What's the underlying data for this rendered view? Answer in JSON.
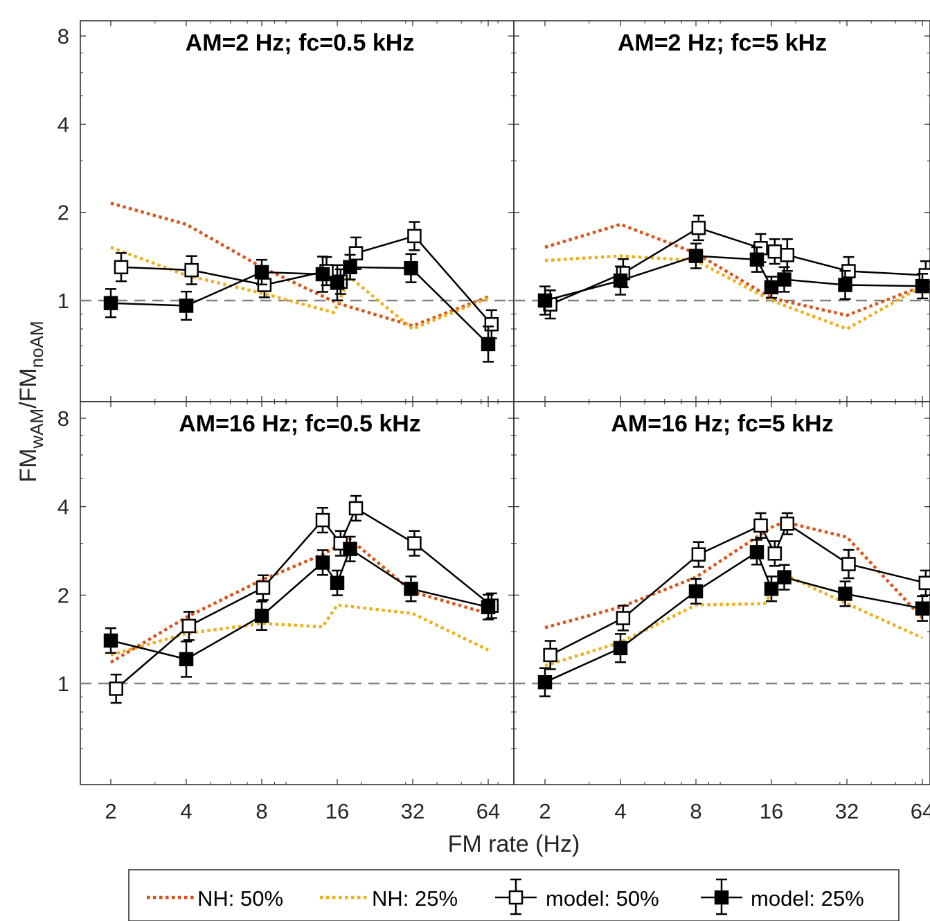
{
  "colors": {
    "nh50": "#D95319",
    "nh25": "#EDB120",
    "model": "#000000",
    "reference_line": "#808080"
  },
  "chart_data": {
    "type": "line",
    "x_scale": "log2",
    "y_scale": "log2",
    "xlabel": "FM rate (Hz)",
    "ylabel": "FMwAM/FMnoAM",
    "ylabel_parts": {
      "main": "FM",
      "sub1": "wAM",
      "slash": "/FM",
      "sub2": "noAM"
    },
    "xlim": [
      1.6,
      80
    ],
    "ylim": [
      0.5,
      9
    ],
    "xticks": [
      2,
      4,
      8,
      16,
      32,
      64
    ],
    "yticks": [
      1,
      2,
      4,
      8
    ],
    "reference_y": 1,
    "legend": {
      "placement": "bottom",
      "entries": [
        {
          "label": "NH: 50%",
          "style": "dotted",
          "color_key": "nh50"
        },
        {
          "label": "NH: 25%",
          "style": "dotted",
          "color_key": "nh25"
        },
        {
          "label": "model: 50%",
          "style": "open-square-errorbar"
        },
        {
          "label": "model: 25%",
          "style": "filled-square-errorbar"
        }
      ]
    },
    "panels": [
      {
        "title": "AM=2 Hz; fc=0.5 kHz",
        "series": [
          {
            "name": "NH: 50%",
            "x": [
              2,
              4,
              8,
              16,
              32,
              64
            ],
            "y": [
              2.15,
              1.82,
              1.3,
              0.98,
              0.82,
              1.03
            ]
          },
          {
            "name": "NH: 25%",
            "x": [
              2,
              4,
              8,
              15.5,
              18,
              32,
              64
            ],
            "y": [
              1.52,
              1.22,
              1.06,
              0.91,
              1.2,
              0.8,
              1.02
            ]
          },
          {
            "name": "model: 50%",
            "x": [
              2.2,
              4.2,
              8.2,
              14.5,
              16.5,
              19,
              32.5,
              66
            ],
            "y": [
              1.3,
              1.27,
              1.13,
              1.26,
              1.16,
              1.45,
              1.66,
              0.83
            ],
            "err": [
              0.08,
              0.08,
              0.07,
              0.08,
              0.07,
              0.09,
              0.08,
              0.08
            ]
          },
          {
            "name": "model: 25%",
            "x": [
              2,
              4,
              8,
              14,
              16,
              18,
              31.5,
              64
            ],
            "y": [
              0.98,
              0.96,
              1.25,
              1.23,
              1.15,
              1.3,
              1.29,
              0.71
            ],
            "err": [
              0.08,
              0.08,
              0.07,
              0.1,
              0.1,
              0.07,
              0.08,
              0.1
            ]
          }
        ]
      },
      {
        "title": "AM=2 Hz; fc=5 kHz",
        "series": [
          {
            "name": "NH: 50%",
            "x": [
              2,
              4,
              8,
              16,
              32,
              64
            ],
            "y": [
              1.52,
              1.82,
              1.45,
              1.02,
              0.89,
              1.12
            ]
          },
          {
            "name": "NH: 25%",
            "x": [
              2,
              4,
              8,
              16,
              32,
              64
            ],
            "y": [
              1.37,
              1.42,
              1.37,
              1.0,
              0.8,
              1.12
            ]
          },
          {
            "name": "model: 50%",
            "x": [
              2.1,
              4.1,
              8.2,
              14.5,
              16.5,
              18.5,
              32.5,
              66
            ],
            "y": [
              0.97,
              1.24,
              1.77,
              1.51,
              1.47,
              1.43,
              1.26,
              1.22
            ],
            "err": [
              0.08,
              0.08,
              0.07,
              0.08,
              0.07,
              0.09,
              0.08,
              0.08
            ]
          },
          {
            "name": "model: 25%",
            "x": [
              2,
              4,
              8,
              14,
              16,
              18,
              31.5,
              64
            ],
            "y": [
              1.0,
              1.17,
              1.42,
              1.38,
              1.11,
              1.18,
              1.13,
              1.12
            ],
            "err": [
              0.08,
              0.08,
              0.07,
              0.07,
              0.06,
              0.07,
              0.08,
              0.07
            ]
          }
        ]
      },
      {
        "title": "AM=16 Hz; fc=0.5 kHz",
        "series": [
          {
            "name": "NH: 50%",
            "x": [
              2,
              4,
              8,
              14,
              18,
              32,
              64
            ],
            "y": [
              1.18,
              1.68,
              2.25,
              2.75,
              3.1,
              2.05,
              1.73
            ]
          },
          {
            "name": "NH: 25%",
            "x": [
              2,
              4,
              8,
              14,
              16,
              32,
              64
            ],
            "y": [
              1.25,
              1.48,
              1.6,
              1.56,
              1.85,
              1.73,
              1.3
            ]
          },
          {
            "name": "model: 50%",
            "x": [
              2.1,
              4.1,
              8.1,
              14,
              16.5,
              19,
              32.5,
              66
            ],
            "y": [
              0.96,
              1.57,
              2.12,
              3.6,
              3.0,
              3.95,
              3.0,
              1.84
            ],
            "err": [
              0.08,
              0.08,
              0.07,
              0.07,
              0.07,
              0.07,
              0.07,
              0.07
            ]
          },
          {
            "name": "model: 25%",
            "x": [
              2,
              4,
              8,
              14,
              16,
              18,
              31.5,
              64
            ],
            "y": [
              1.4,
              1.21,
              1.7,
              2.58,
              2.2,
              2.87,
              2.1,
              1.82
            ],
            "err": [
              0.07,
              0.1,
              0.08,
              0.07,
              0.07,
              0.07,
              0.07,
              0.07
            ]
          }
        ]
      },
      {
        "title": "AM=16 Hz; fc=5 kHz",
        "series": [
          {
            "name": "NH: 50%",
            "x": [
              2,
              4,
              8,
              16,
              18,
              32,
              64
            ],
            "y": [
              1.55,
              1.82,
              2.3,
              3.4,
              3.55,
              3.15,
              1.67
            ]
          },
          {
            "name": "NH: 25%",
            "x": [
              2,
              4,
              8,
              15,
              18,
              32,
              64
            ],
            "y": [
              1.15,
              1.38,
              1.85,
              1.87,
              2.35,
              1.87,
              1.43
            ]
          },
          {
            "name": "model: 50%",
            "x": [
              2.1,
              4.1,
              8.2,
              14.5,
              16.5,
              18.5,
              32.5,
              66
            ],
            "y": [
              1.25,
              1.67,
              2.75,
              3.45,
              2.77,
              3.5,
              2.55,
              2.2
            ],
            "err": [
              0.08,
              0.07,
              0.07,
              0.07,
              0.07,
              0.06,
              0.08,
              0.07
            ]
          },
          {
            "name": "model: 25%",
            "x": [
              2,
              4,
              8,
              14,
              16,
              18,
              31.5,
              64
            ],
            "y": [
              1.01,
              1.32,
              2.06,
              2.8,
              2.1,
              2.3,
              2.02,
              1.8
            ],
            "err": [
              0.08,
              0.08,
              0.07,
              0.07,
              0.07,
              0.07,
              0.07,
              0.07
            ]
          }
        ]
      }
    ]
  }
}
